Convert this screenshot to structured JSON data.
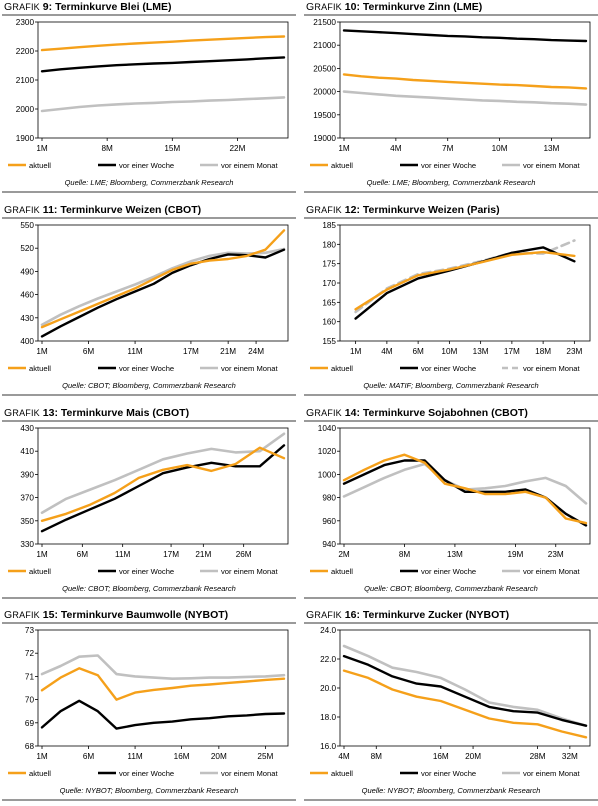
{
  "colors": {
    "aktuell": "#f5a01a",
    "woche": "#000000",
    "monat": "#c0c0c0"
  },
  "legend": {
    "aktuell": "aktuell",
    "woche": "vor einer Woche",
    "monat": "vor einem Monat"
  },
  "chart_data": [
    {
      "type": "line",
      "prefix": "Grafik",
      "number": "9:",
      "title": "Terminkurve Blei (LME)",
      "source": "Quelle: LME; Bloomberg, Commerzbank Research",
      "yticks": [
        "2300",
        "2200",
        "2100",
        "2000",
        "1900"
      ],
      "ylim": [
        1900,
        2300
      ],
      "xticks": [
        {
          "label": "1M",
          "x": 1
        },
        {
          "label": "8M",
          "x": 8
        },
        {
          "label": "15M",
          "x": 15
        },
        {
          "label": "22M",
          "x": 22
        }
      ],
      "xlim": [
        1,
        27
      ],
      "series": [
        {
          "key": "aktuell",
          "x": [
            1,
            3,
            5,
            7,
            9,
            11,
            13,
            15,
            17,
            19,
            21,
            23,
            25,
            27
          ],
          "y": [
            2203,
            2208,
            2213,
            2218,
            2222,
            2226,
            2229,
            2232,
            2236,
            2239,
            2242,
            2245,
            2248,
            2250
          ]
        },
        {
          "key": "woche",
          "x": [
            1,
            3,
            5,
            7,
            9,
            11,
            13,
            15,
            17,
            19,
            21,
            23,
            25,
            27
          ],
          "y": [
            2130,
            2137,
            2142,
            2147,
            2151,
            2154,
            2157,
            2159,
            2162,
            2165,
            2168,
            2171,
            2175,
            2178
          ]
        },
        {
          "key": "monat",
          "x": [
            1,
            3,
            5,
            7,
            9,
            11,
            13,
            15,
            17,
            19,
            21,
            23,
            25,
            27
          ],
          "y": [
            1993,
            2000,
            2007,
            2012,
            2016,
            2019,
            2021,
            2024,
            2026,
            2029,
            2031,
            2034,
            2037,
            2040
          ]
        }
      ],
      "dashed_monat": false
    },
    {
      "type": "line",
      "prefix": "Grafik",
      "number": "10:",
      "title": "Terminkurve Zinn (LME)",
      "source": "Quelle: LME; Bloomberg, Commerzbank Research",
      "yticks": [
        "21500",
        "21000",
        "20500",
        "20000",
        "19500",
        "19000"
      ],
      "ylim": [
        19000,
        21500
      ],
      "xticks": [
        {
          "label": "1M",
          "x": 1
        },
        {
          "label": "4M",
          "x": 4
        },
        {
          "label": "7M",
          "x": 7
        },
        {
          "label": "10M",
          "x": 10
        },
        {
          "label": "13M",
          "x": 13
        }
      ],
      "xlim": [
        1,
        15
      ],
      "series": [
        {
          "key": "aktuell",
          "x": [
            1,
            2,
            3,
            4,
            5,
            6,
            7,
            8,
            9,
            10,
            11,
            12,
            13,
            14,
            15
          ],
          "y": [
            20370,
            20330,
            20300,
            20280,
            20250,
            20230,
            20210,
            20190,
            20170,
            20150,
            20140,
            20120,
            20100,
            20090,
            20070
          ]
        },
        {
          "key": "woche",
          "x": [
            1,
            2,
            3,
            4,
            5,
            6,
            7,
            8,
            9,
            10,
            11,
            12,
            13,
            14,
            15
          ],
          "y": [
            21320,
            21300,
            21280,
            21260,
            21240,
            21220,
            21200,
            21190,
            21170,
            21160,
            21140,
            21130,
            21110,
            21100,
            21090
          ]
        },
        {
          "key": "monat",
          "x": [
            1,
            2,
            3,
            4,
            5,
            6,
            7,
            8,
            9,
            10,
            11,
            12,
            13,
            14,
            15
          ],
          "y": [
            20000,
            19970,
            19940,
            19910,
            19890,
            19870,
            19850,
            19830,
            19810,
            19800,
            19780,
            19770,
            19750,
            19740,
            19720
          ]
        }
      ],
      "dashed_monat": false
    },
    {
      "type": "line",
      "prefix": "Grafik",
      "number": "11:",
      "title": "Terminkurve Weizen (CBOT)",
      "source": "Quelle: CBOT; Bloomberg, Commerzbank Research",
      "yticks": [
        "550",
        "520",
        "490",
        "460",
        "430",
        "400"
      ],
      "ylim": [
        400,
        550
      ],
      "xticks": [
        {
          "label": "1M",
          "x": 1
        },
        {
          "label": "6M",
          "x": 6
        },
        {
          "label": "11M",
          "x": 11
        },
        {
          "label": "17M",
          "x": 17
        },
        {
          "label": "21M",
          "x": 21
        },
        {
          "label": "24M",
          "x": 24
        }
      ],
      "xlim": [
        1,
        27
      ],
      "series": [
        {
          "key": "aktuell",
          "x": [
            1,
            3,
            5,
            7,
            9,
            11,
            13,
            15,
            17,
            19,
            21,
            23,
            25,
            27
          ],
          "y": [
            418,
            428,
            438,
            448,
            458,
            468,
            480,
            492,
            500,
            504,
            506,
            510,
            518,
            543
          ]
        },
        {
          "key": "woche",
          "x": [
            1,
            3,
            5,
            7,
            9,
            11,
            13,
            15,
            17,
            19,
            21,
            23,
            25,
            27
          ],
          "y": [
            406,
            419,
            431,
            443,
            454,
            464,
            474,
            488,
            498,
            506,
            512,
            511,
            508,
            518
          ]
        },
        {
          "key": "monat",
          "x": [
            1,
            3,
            5,
            7,
            9,
            11,
            13,
            15,
            17,
            19,
            21,
            23,
            25,
            27
          ],
          "y": [
            421,
            434,
            445,
            455,
            464,
            473,
            483,
            494,
            503,
            510,
            514,
            513,
            514,
            519
          ]
        }
      ],
      "dashed_monat": false
    },
    {
      "type": "line",
      "prefix": "Grafik",
      "number": "12:",
      "title": "Terminkurve Weizen (Paris)",
      "source": "Quelle: MATIF; Bloomberg, Commerzbank Research",
      "yticks": [
        "185",
        "180",
        "175",
        "170",
        "165",
        "160",
        "155"
      ],
      "ylim": [
        155,
        185
      ],
      "xticks": [
        {
          "label": "1M",
          "x": 1
        },
        {
          "label": "4M",
          "x": 4
        },
        {
          "label": "6M",
          "x": 6
        },
        {
          "label": "10M",
          "x": 10
        },
        {
          "label": "13M",
          "x": 13
        },
        {
          "label": "17M",
          "x": 17
        },
        {
          "label": "18M",
          "x": 18
        },
        {
          "label": "23M",
          "x": 23
        }
      ],
      "xcat": true,
      "series": [
        {
          "key": "aktuell",
          "x": [
            0,
            1,
            2,
            3,
            4,
            5,
            6,
            7
          ],
          "y": [
            163.2,
            168.3,
            172.0,
            173.5,
            175.3,
            177.3,
            178.0,
            177.0
          ]
        },
        {
          "key": "woche",
          "x": [
            0,
            1,
            2,
            3,
            4,
            5,
            6,
            7
          ],
          "y": [
            160.8,
            167.4,
            171.2,
            173.2,
            175.4,
            177.8,
            179.2,
            175.6
          ]
        },
        {
          "key": "monat",
          "x": [
            0,
            1,
            2,
            3,
            4,
            5,
            6,
            7
          ],
          "y": [
            162.5,
            168.6,
            172.3,
            173.7,
            175.6,
            177.8,
            177.6,
            181.0
          ]
        }
      ],
      "dashed_monat": true
    },
    {
      "type": "line",
      "prefix": "Grafik",
      "number": "13:",
      "title": "Terminkurve Mais (CBOT)",
      "source": "Quelle: CBOT; Bloomberg, Commerzbank Research",
      "yticks": [
        "430",
        "410",
        "390",
        "370",
        "350",
        "330"
      ],
      "ylim": [
        330,
        430
      ],
      "xticks": [
        {
          "label": "1M",
          "x": 1
        },
        {
          "label": "6M",
          "x": 6
        },
        {
          "label": "11M",
          "x": 11
        },
        {
          "label": "17M",
          "x": 17
        },
        {
          "label": "21M",
          "x": 21
        },
        {
          "label": "26M",
          "x": 26
        }
      ],
      "xlim": [
        1,
        31
      ],
      "series": [
        {
          "key": "aktuell",
          "x": [
            1,
            4,
            7,
            10,
            13,
            16,
            19,
            22,
            25,
            28,
            31
          ],
          "y": [
            350,
            356,
            364,
            374,
            387,
            394,
            398,
            393,
            399,
            413,
            404
          ]
        },
        {
          "key": "woche",
          "x": [
            1,
            4,
            7,
            10,
            13,
            16,
            19,
            22,
            25,
            28,
            31
          ],
          "y": [
            341,
            351,
            360,
            369,
            380,
            391,
            396,
            400,
            397,
            397,
            415
          ]
        },
        {
          "key": "monat",
          "x": [
            1,
            4,
            7,
            10,
            13,
            16,
            19,
            22,
            25,
            28,
            31
          ],
          "y": [
            357,
            369,
            377,
            385,
            394,
            403,
            408,
            412,
            409,
            410,
            425
          ]
        }
      ],
      "dashed_monat": false
    },
    {
      "type": "line",
      "prefix": "Grafik",
      "number": "14:",
      "title": "Terminkurve Sojabohnen (CBOT)",
      "source": "Quelle: CBOT; Bloomberg, Commerzbank Research",
      "yticks": [
        "1040",
        "1020",
        "1000",
        "980",
        "960",
        "940"
      ],
      "ylim": [
        940,
        1040
      ],
      "xticks": [
        {
          "label": "2M",
          "x": 2
        },
        {
          "label": "8M",
          "x": 8
        },
        {
          "label": "13M",
          "x": 13
        },
        {
          "label": "19M",
          "x": 19
        },
        {
          "label": "23M",
          "x": 23
        }
      ],
      "xlim": [
        2,
        26
      ],
      "series": [
        {
          "key": "aktuell",
          "x": [
            2,
            4,
            6,
            8,
            10,
            12,
            14,
            16,
            18,
            20,
            22,
            24,
            26
          ],
          "y": [
            995,
            1004,
            1012,
            1017,
            1010,
            992,
            988,
            983,
            983,
            985,
            980,
            962,
            958
          ]
        },
        {
          "key": "woche",
          "x": [
            2,
            4,
            6,
            8,
            10,
            12,
            14,
            16,
            18,
            20,
            22,
            24,
            26
          ],
          "y": [
            992,
            1000,
            1008,
            1012,
            1012,
            995,
            985,
            985,
            985,
            987,
            980,
            966,
            956
          ]
        },
        {
          "key": "monat",
          "x": [
            2,
            4,
            6,
            8,
            10,
            12,
            14,
            16,
            18,
            20,
            22,
            24,
            26
          ],
          "y": [
            981,
            989,
            997,
            1004,
            1009,
            995,
            987,
            988,
            990,
            994,
            997,
            990,
            975
          ]
        }
      ],
      "dashed_monat": false
    },
    {
      "type": "line",
      "prefix": "Grafik",
      "number": "15:",
      "title": "Terminkurve Baumwolle (NYBOT)",
      "source": "Quelle: NYBOT; Bloomberg, Commerzbank Research",
      "yticks": [
        "73",
        "72",
        "71",
        "70",
        "69",
        "68"
      ],
      "ylim": [
        68,
        73
      ],
      "xticks": [
        {
          "label": "1M",
          "x": 1
        },
        {
          "label": "6M",
          "x": 6
        },
        {
          "label": "11M",
          "x": 11
        },
        {
          "label": "16M",
          "x": 16
        },
        {
          "label": "20M",
          "x": 20
        },
        {
          "label": "25M",
          "x": 25
        }
      ],
      "xlim": [
        1,
        27
      ],
      "series": [
        {
          "key": "aktuell",
          "x": [
            1,
            3,
            5,
            7,
            9,
            11,
            13,
            15,
            17,
            19,
            21,
            23,
            25,
            27
          ],
          "y": [
            70.4,
            70.95,
            71.35,
            71.05,
            70.0,
            70.3,
            70.42,
            70.5,
            70.6,
            70.65,
            70.72,
            70.78,
            70.85,
            70.9
          ]
        },
        {
          "key": "woche",
          "x": [
            1,
            3,
            5,
            7,
            9,
            11,
            13,
            15,
            17,
            19,
            21,
            23,
            25,
            27
          ],
          "y": [
            68.8,
            69.5,
            69.95,
            69.5,
            68.75,
            68.9,
            69.0,
            69.05,
            69.15,
            69.2,
            69.28,
            69.32,
            69.38,
            69.4
          ]
        },
        {
          "key": "monat",
          "x": [
            1,
            3,
            5,
            7,
            9,
            11,
            13,
            15,
            17,
            19,
            21,
            23,
            25,
            27
          ],
          "y": [
            71.1,
            71.45,
            71.85,
            71.9,
            71.1,
            71.0,
            70.95,
            70.9,
            70.92,
            70.95,
            70.95,
            70.98,
            71.0,
            71.05
          ]
        }
      ],
      "dashed_monat": false
    },
    {
      "type": "line",
      "prefix": "Grafik",
      "number": "16:",
      "title": "Terminkurve Zucker (NYBOT)",
      "source": "Quelle: NYBOT; Bloomberg, Commerzbank Research",
      "yticks": [
        "24.0",
        "22.0",
        "20.0",
        "18.0",
        "16.0"
      ],
      "ylim": [
        16,
        24
      ],
      "xticks": [
        {
          "label": "4M",
          "x": 4
        },
        {
          "label": "8M",
          "x": 8
        },
        {
          "label": "16M",
          "x": 16
        },
        {
          "label": "20M",
          "x": 20
        },
        {
          "label": "28M",
          "x": 28
        },
        {
          "label": "32M",
          "x": 32
        }
      ],
      "xlim": [
        4,
        34
      ],
      "series": [
        {
          "key": "aktuell",
          "x": [
            4,
            7,
            10,
            13,
            16,
            19,
            22,
            25,
            28,
            31,
            34
          ],
          "y": [
            21.2,
            20.7,
            19.9,
            19.4,
            19.1,
            18.5,
            17.9,
            17.6,
            17.5,
            17.0,
            16.6
          ]
        },
        {
          "key": "woche",
          "x": [
            4,
            7,
            10,
            13,
            16,
            19,
            22,
            25,
            28,
            31,
            34
          ],
          "y": [
            22.2,
            21.6,
            20.8,
            20.3,
            20.1,
            19.4,
            18.7,
            18.4,
            18.3,
            17.8,
            17.4
          ]
        },
        {
          "key": "monat",
          "x": [
            4,
            7,
            10,
            13,
            16,
            19,
            22,
            25,
            28,
            31,
            34
          ],
          "y": [
            22.9,
            22.2,
            21.4,
            21.1,
            20.7,
            19.9,
            19.0,
            18.7,
            18.5,
            17.9,
            17.4
          ]
        }
      ],
      "dashed_monat": false
    }
  ]
}
